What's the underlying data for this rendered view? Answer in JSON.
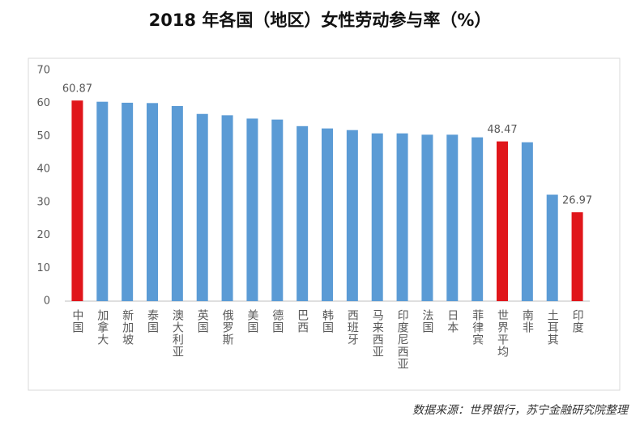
{
  "chart_data": {
    "type": "bar",
    "title": "2018 年各国（地区）女性劳动参与率（%）",
    "source": "数据来源：世界银行，苏宁金融研究院整理",
    "categories": [
      "中国",
      "加拿大",
      "新加坡",
      "泰国",
      "澳大利亚",
      "英国",
      "俄罗斯",
      "美国",
      "德国",
      "巴西",
      "韩国",
      "西班牙",
      "马来西亚",
      "印度尼西亚",
      "法国",
      "日本",
      "菲律宾",
      "世界平均",
      "南非",
      "土耳其",
      "印度"
    ],
    "values": [
      60.87,
      60.5,
      60.2,
      60.1,
      59.2,
      56.8,
      56.4,
      55.4,
      55.1,
      53.1,
      52.4,
      51.9,
      50.9,
      50.9,
      50.5,
      50.5,
      49.7,
      48.47,
      48.2,
      32.3,
      26.97
    ],
    "value_labels": [
      "60.87",
      null,
      null,
      null,
      null,
      null,
      null,
      null,
      null,
      null,
      null,
      null,
      null,
      null,
      null,
      null,
      null,
      "48.47",
      null,
      null,
      "26.97"
    ],
    "colors": [
      "#e0161b",
      "#5b9bd5",
      "#5b9bd5",
      "#5b9bd5",
      "#5b9bd5",
      "#5b9bd5",
      "#5b9bd5",
      "#5b9bd5",
      "#5b9bd5",
      "#5b9bd5",
      "#5b9bd5",
      "#5b9bd5",
      "#5b9bd5",
      "#5b9bd5",
      "#5b9bd5",
      "#5b9bd5",
      "#5b9bd5",
      "#e0161b",
      "#5b9bd5",
      "#5b9bd5",
      "#e0161b"
    ],
    "ylim": [
      0,
      70
    ],
    "yticks": [
      0,
      10,
      20,
      30,
      40,
      50,
      60,
      70
    ],
    "grid": false
  }
}
